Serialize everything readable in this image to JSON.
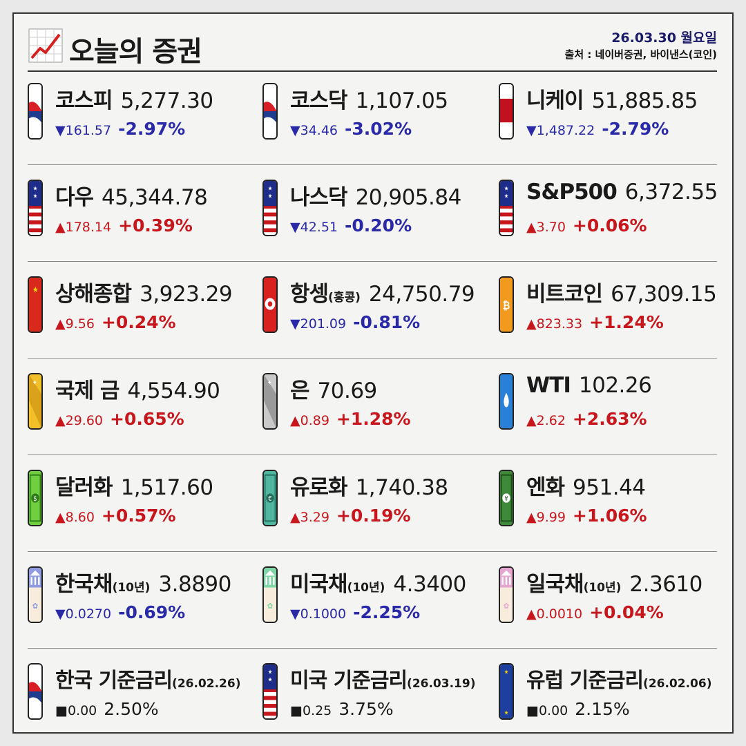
{
  "header": {
    "title": "오늘의 증권",
    "date": "26.03.30 월요일",
    "source": "출처 : 네이버증권, 바이낸스(코인)"
  },
  "rows": [
    [
      {
        "name": "코스피",
        "sub": "",
        "value": "5,277.30",
        "amount": "▼161.57",
        "percent": "-2.97%",
        "dir": "down",
        "icon": "korea-flag-icon"
      },
      {
        "name": "코스닥",
        "sub": "",
        "value": "1,107.05",
        "amount": "▼34.46",
        "percent": "-3.02%",
        "dir": "down",
        "icon": "korea-flag-icon"
      },
      {
        "name": "니케이",
        "sub": "",
        "value": "51,885.85",
        "amount": "▼1,487.22",
        "percent": "-2.79%",
        "dir": "down",
        "icon": "japan-flag-icon"
      }
    ],
    [
      {
        "name": "다우",
        "sub": "",
        "value": "45,344.78",
        "amount": "▲178.14",
        "percent": "+0.39%",
        "dir": "up",
        "icon": "usa-flag-icon"
      },
      {
        "name": "나스닥",
        "sub": "",
        "value": "20,905.84",
        "amount": "▼42.51",
        "percent": "-0.20%",
        "dir": "down",
        "icon": "usa-flag-icon"
      },
      {
        "name": "S&P500",
        "sub": "",
        "value": "6,372.55",
        "amount": "▲3.70",
        "percent": "+0.06%",
        "dir": "up",
        "icon": "usa-flag-icon"
      }
    ],
    [
      {
        "name": "상해종합",
        "sub": "",
        "value": "3,923.29",
        "amount": "▲9.56",
        "percent": "+0.24%",
        "dir": "up",
        "icon": "china-flag-icon"
      },
      {
        "name": "항셍",
        "sub": "(홍콩)",
        "value": "24,750.79",
        "amount": "▼201.09",
        "percent": "-0.81%",
        "dir": "down",
        "icon": "hongkong-flag-icon"
      },
      {
        "name": "비트코인",
        "sub": "",
        "value": "67,309.15",
        "amount": "▲823.33",
        "percent": "+1.24%",
        "dir": "up",
        "icon": "bitcoin-icon"
      }
    ],
    [
      {
        "name": "국제 금",
        "sub": "",
        "value": "4,554.90",
        "amount": "▲29.60",
        "percent": "+0.65%",
        "dir": "up",
        "icon": "gold-bar-icon"
      },
      {
        "name": "은",
        "sub": "",
        "value": "70.69",
        "amount": "▲0.89",
        "percent": "+1.28%",
        "dir": "up",
        "icon": "silver-bar-icon"
      },
      {
        "name": "WTI",
        "sub": "",
        "value": "102.26",
        "amount": "▲2.62",
        "percent": "+2.63%",
        "dir": "up",
        "icon": "oil-drop-icon"
      }
    ],
    [
      {
        "name": "달러화",
        "sub": "",
        "value": "1,517.60",
        "amount": "▲8.60",
        "percent": "+0.57%",
        "dir": "up",
        "icon": "dollar-bill-icon"
      },
      {
        "name": "유로화",
        "sub": "",
        "value": "1,740.38",
        "amount": "▲3.29",
        "percent": "+0.19%",
        "dir": "up",
        "icon": "euro-bill-icon"
      },
      {
        "name": "엔화",
        "sub": "",
        "value": "951.44",
        "amount": "▲9.99",
        "percent": "+1.06%",
        "dir": "up",
        "icon": "yen-bill-icon"
      }
    ],
    [
      {
        "name": "한국채",
        "sub": "(10년)",
        "value": "3.8890",
        "amount": "▼0.0270",
        "percent": "-0.69%",
        "dir": "down",
        "icon": "korea-bond-icon"
      },
      {
        "name": "미국채",
        "sub": "(10년)",
        "value": "4.3400",
        "amount": "▼0.1000",
        "percent": "-2.25%",
        "dir": "down",
        "icon": "usa-bond-icon"
      },
      {
        "name": "일국채",
        "sub": "(10년)",
        "value": "2.3610",
        "amount": "▲0.0010",
        "percent": "+0.04%",
        "dir": "up",
        "icon": "japan-bond-icon"
      }
    ],
    [
      {
        "name": "한국 기준금리",
        "sub": "(26.02.26)",
        "value": "",
        "amount": "■0.00",
        "percent": "2.50%",
        "dir": "flat",
        "icon": "korea-flag-icon"
      },
      {
        "name": "미국 기준금리",
        "sub": "(26.03.19)",
        "value": "",
        "amount": "■0.25",
        "percent": "3.75%",
        "dir": "flat",
        "icon": "usa-flag-icon"
      },
      {
        "name": "유럽 기준금리",
        "sub": "(26.02.06)",
        "value": "",
        "amount": "■0.00",
        "percent": "2.15%",
        "dir": "flat",
        "icon": "eu-flag-icon"
      }
    ]
  ]
}
